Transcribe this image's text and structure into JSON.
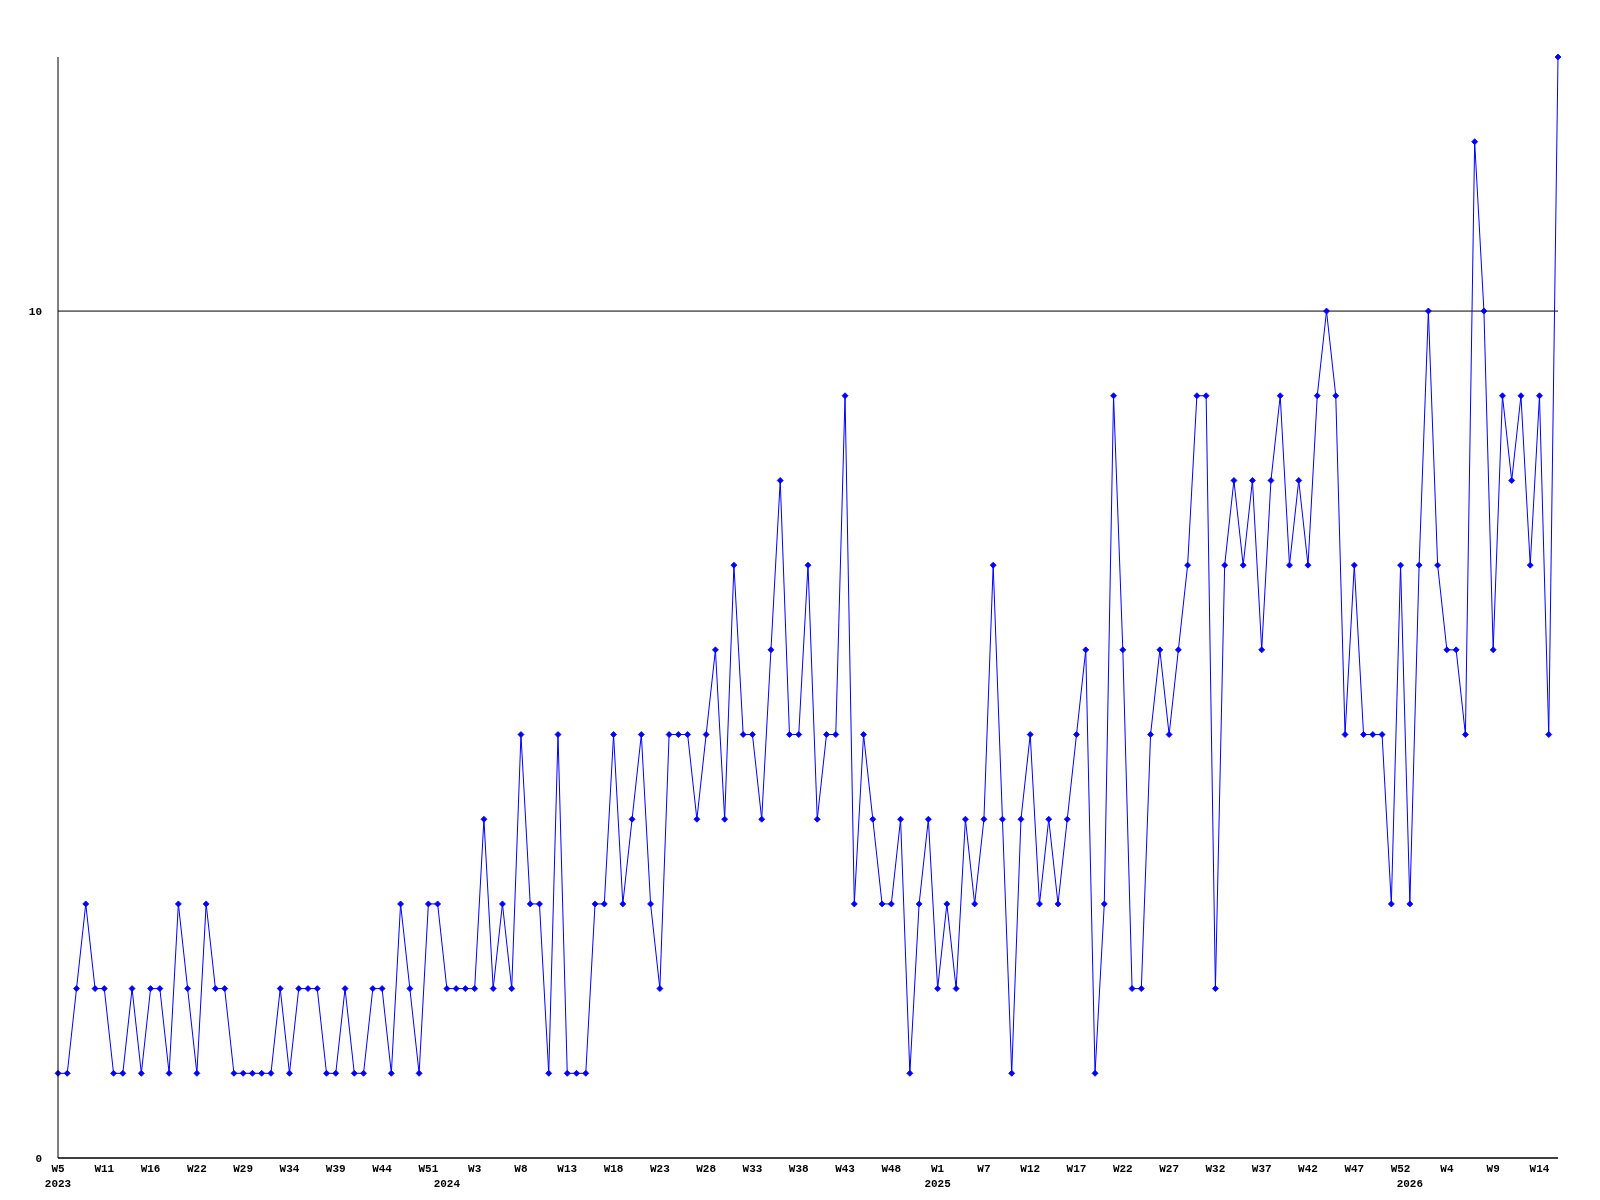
{
  "chart_data": {
    "type": "line",
    "categories": [
      "W5\n2023",
      null,
      null,
      null,
      null,
      "W11",
      null,
      null,
      null,
      null,
      "W16",
      null,
      null,
      null,
      null,
      "W22",
      null,
      null,
      null,
      null,
      "W29",
      null,
      null,
      null,
      null,
      "W34",
      null,
      null,
      null,
      null,
      "W39",
      null,
      null,
      null,
      null,
      "W44",
      null,
      null,
      null,
      null,
      "W51",
      null,
      "\n2024",
      null,
      null,
      "W3",
      null,
      null,
      null,
      null,
      "W8",
      null,
      null,
      null,
      null,
      "W13",
      null,
      null,
      null,
      null,
      "W18",
      null,
      null,
      null,
      null,
      "W23",
      null,
      null,
      null,
      null,
      "W28",
      null,
      null,
      null,
      null,
      "W33",
      null,
      null,
      null,
      null,
      "W38",
      null,
      null,
      null,
      null,
      "W43",
      null,
      null,
      null,
      null,
      "W48",
      null,
      null,
      null,
      null,
      "W1\n2025",
      null,
      null,
      null,
      null,
      "W7",
      null,
      null,
      null,
      null,
      "W12",
      null,
      null,
      null,
      null,
      "W17",
      null,
      null,
      null,
      null,
      "W22",
      null,
      null,
      null,
      null,
      "W27",
      null,
      null,
      null,
      null,
      "W32",
      null,
      null,
      null,
      null,
      "W37",
      null,
      null,
      null,
      null,
      "W42",
      null,
      null,
      null,
      null,
      "W47",
      null,
      null,
      null,
      null,
      "W52",
      "\n2026",
      null,
      null,
      null,
      "W4",
      null,
      null,
      null,
      null,
      "W9",
      null,
      null,
      null,
      null,
      "W14",
      null,
      null
    ],
    "series": [
      {
        "color": "#0000ff",
        "values": [
          1,
          1,
          2,
          3,
          2,
          2,
          1,
          1,
          2,
          1,
          2,
          2,
          1,
          3,
          2,
          1,
          3,
          2,
          2,
          1,
          1,
          1,
          1,
          1,
          2,
          1,
          2,
          2,
          2,
          1,
          1,
          2,
          1,
          1,
          2,
          2,
          1,
          3,
          2,
          1,
          3,
          3,
          2,
          2,
          2,
          2,
          4,
          2,
          3,
          2,
          5,
          3,
          3,
          1,
          5,
          1,
          1,
          1,
          3,
          3,
          5,
          3,
          4,
          5,
          3,
          2,
          5,
          5,
          5,
          4,
          5,
          6,
          4,
          7,
          5,
          5,
          4,
          6,
          8,
          5,
          5,
          7,
          4,
          5,
          5,
          9,
          3,
          5,
          4,
          3,
          3,
          4,
          1,
          3,
          4,
          2,
          3,
          2,
          4,
          3,
          4,
          7,
          4,
          1,
          4,
          5,
          3,
          4,
          3,
          4,
          5,
          6,
          1,
          3,
          9,
          6,
          2,
          2,
          5,
          6,
          5,
          6,
          7,
          9,
          9,
          2,
          7,
          8,
          7,
          8,
          6,
          8,
          9,
          7,
          8,
          7,
          9,
          10,
          9,
          5,
          7,
          5,
          5,
          5,
          3,
          7,
          3,
          7,
          10,
          7,
          6,
          6,
          5,
          12,
          10,
          6,
          9,
          8,
          9,
          7,
          9,
          5,
          13
        ]
      }
    ],
    "ylim": [
      0,
      13
    ],
    "yticks": [
      0,
      10
    ],
    "grid": "y",
    "marker": "diamond"
  }
}
